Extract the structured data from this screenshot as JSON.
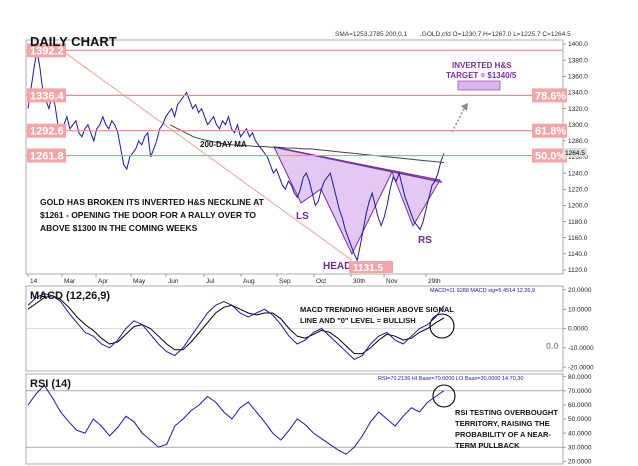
{
  "chart_data": {
    "type": "line",
    "title": "DAILY CHART",
    "header_info": "SMA=1253.2785  200,0,1",
    "header_quote": ".GOLD.cfd O=1230.7 H=1267.0 L=1225.7 C=1264.5",
    "x_ticks": [
      "14",
      "Mar",
      "Apr",
      "May",
      "Jun",
      "Jul",
      "Aug",
      "Sep",
      "Oct",
      "30th",
      "Nov",
      "29th"
    ],
    "price_panel": {
      "ylim": [
        1115,
        1405
      ],
      "y_ticks": [
        1120,
        1140,
        1160,
        1180,
        1200,
        1220,
        1240,
        1260,
        1280,
        1300,
        1320,
        1340,
        1360,
        1380,
        1400
      ],
      "y_tick_labels": [
        "1120.0",
        "1140.0",
        "1160.0",
        "1180.0",
        "1200.0",
        "1220.0",
        "1240.0",
        "1260.0",
        "1280.0",
        "1300.0",
        "1320.0",
        "1340.0",
        "1360.0",
        "1380.0",
        "1400.0"
      ],
      "last_price_label": "1264.5",
      "series": [
        {
          "values": [
            1320,
            1345,
            1370,
            1392,
            1370,
            1340,
            1330,
            1320,
            1335,
            1325,
            1300,
            1290,
            1300,
            1310,
            1295,
            1300,
            1305,
            1290,
            1285,
            1295,
            1300,
            1290,
            1280,
            1295,
            1300,
            1310,
            1300,
            1295,
            1305,
            1300,
            1290,
            1270,
            1250,
            1245,
            1260,
            1265,
            1270,
            1280,
            1275,
            1285,
            1290,
            1260,
            1270,
            1280,
            1295,
            1300,
            1310,
            1315,
            1320,
            1310,
            1325,
            1330,
            1335,
            1340,
            1330,
            1320,
            1325,
            1315,
            1320,
            1310,
            1300,
            1305,
            1310,
            1300,
            1295,
            1305,
            1300,
            1310,
            1295,
            1290,
            1300,
            1285,
            1290,
            1295,
            1285,
            1290,
            1280,
            1275,
            1270,
            1265,
            1260,
            1250,
            1240,
            1245,
            1235,
            1225,
            1220,
            1230,
            1225,
            1215,
            1210,
            1220,
            1235,
            1240,
            1230,
            1215,
            1200,
            1205,
            1220,
            1230,
            1235,
            1240,
            1225,
            1210,
            1195,
            1185,
            1170,
            1160,
            1150,
            1140,
            1132,
            1150,
            1170,
            1190,
            1205,
            1215,
            1200,
            1185,
            1175,
            1185,
            1200,
            1220,
            1235,
            1230,
            1240,
            1225,
            1210,
            1200,
            1190,
            1180,
            1175,
            1170,
            1180,
            1195,
            1210,
            1225,
            1230,
            1240,
            1255,
            1264.5
          ]
        },
        {
          "name": "200-DAY MA",
          "values": [
            1300,
            1295,
            1290,
            1285,
            1282,
            1280,
            1278,
            1276,
            1275,
            1274,
            1274,
            1273,
            1273,
            1272,
            1272,
            1271,
            1271,
            1270,
            1270,
            1269,
            1268,
            1267,
            1266,
            1265,
            1264,
            1263,
            1262,
            1261,
            1260,
            1259,
            1258,
            1257,
            1256,
            1255,
            1254,
            1253
          ]
        }
      ],
      "levels": [
        {
          "label": "1392.2",
          "value": 1392.2,
          "side": "left"
        },
        {
          "label": "1336.4",
          "value": 1336.4,
          "side": "left"
        },
        {
          "label": "1292.6",
          "value": 1292.6,
          "side": "left"
        },
        {
          "label": "1261.8",
          "value": 1261.8,
          "side": "left"
        },
        {
          "label": "78.6%",
          "value": 1336.4,
          "side": "right"
        },
        {
          "label": "61.8%",
          "value": 1292.6,
          "side": "right"
        },
        {
          "label": "50.0%",
          "value": 1261.8,
          "side": "right"
        }
      ],
      "head_low_label": "1131.5",
      "annotations": {
        "ma_label": "200-DAY MA",
        "ls": "LS",
        "head": "HEAD",
        "rs": "RS",
        "target_line1": "INVERTED H&S",
        "target_line2": "TARGET = $1340/5",
        "commentary": [
          "GOLD HAS BROKEN ITS INVERTED H&S NECKLINE AT",
          "$1261 - OPENING THE DOOR FOR A RALLY OVER TO",
          "ABOVE $1300 IN THE COMING WEEKS"
        ]
      }
    },
    "macd_panel": {
      "title": "MACD (12,26,9)",
      "header": "MACD=11.9288 MACD sig=5.4514  12,26,9",
      "ylim": [
        -22,
        22
      ],
      "y_ticks": [
        20,
        10,
        0,
        -10,
        -20
      ],
      "y_tick_labels": [
        "20.0000",
        "10.0000",
        "0.0000",
        "-10.0000",
        "-20.0000"
      ],
      "zero_label": "0.0",
      "annotation": [
        "MACD TRENDING HIGHER ABOVE SIGNAL",
        "LINE AND \"0\" LEVEL = BULLISH"
      ],
      "series": [
        {
          "name": "MACD",
          "values": [
            12,
            16,
            18,
            17,
            14,
            8,
            3,
            -2,
            -4,
            -8,
            -10,
            -6,
            0,
            4,
            2,
            -3,
            -8,
            -12,
            -14,
            -10,
            -4,
            2,
            8,
            12,
            14,
            12,
            8,
            6,
            8,
            10,
            7,
            2,
            -4,
            -8,
            -6,
            -2,
            0,
            -4,
            -8,
            -12,
            -16,
            -14,
            -8,
            -4,
            -2,
            -6,
            -8,
            -4,
            0,
            2,
            6,
            11.9
          ]
        },
        {
          "name": "Signal",
          "values": [
            10,
            13,
            16,
            17,
            15,
            11,
            6,
            2,
            -1,
            -5,
            -8,
            -7,
            -3,
            1,
            2,
            0,
            -4,
            -8,
            -11,
            -11,
            -7,
            -2,
            3,
            8,
            11,
            12,
            10,
            8,
            7,
            8,
            8,
            5,
            0,
            -4,
            -5,
            -3,
            -1,
            -2,
            -5,
            -9,
            -13,
            -13,
            -10,
            -6,
            -3,
            -4,
            -6,
            -5,
            -2,
            0,
            3,
            5.5
          ]
        }
      ]
    },
    "rsi_panel": {
      "title": "RSI (14)",
      "header": "RSI=70.2136  HI Base=70.0000  LO Base=30.0000  14,70,30",
      "ylim": [
        18,
        82
      ],
      "y_ticks": [
        80,
        70,
        60,
        50,
        40,
        30,
        20
      ],
      "y_tick_labels": [
        "80.0000",
        "70.0000",
        "60.0000",
        "50.0000",
        "40.0000",
        "30.0000",
        "20.0000"
      ],
      "annotation": [
        "RSI TESTING OVERBOUGHT",
        "TERRITORY, RAISING THE",
        "PROBABILITY OF A NEAR-",
        "TERM PULLBACK"
      ],
      "values": [
        60,
        68,
        74,
        65,
        55,
        48,
        42,
        40,
        50,
        45,
        38,
        44,
        52,
        48,
        40,
        35,
        30,
        32,
        45,
        50,
        56,
        60,
        66,
        62,
        55,
        50,
        58,
        62,
        55,
        48,
        40,
        35,
        42,
        50,
        46,
        40,
        36,
        32,
        28,
        25,
        30,
        38,
        48,
        55,
        50,
        45,
        52,
        58,
        55,
        62,
        66,
        70.2
      ]
    }
  }
}
